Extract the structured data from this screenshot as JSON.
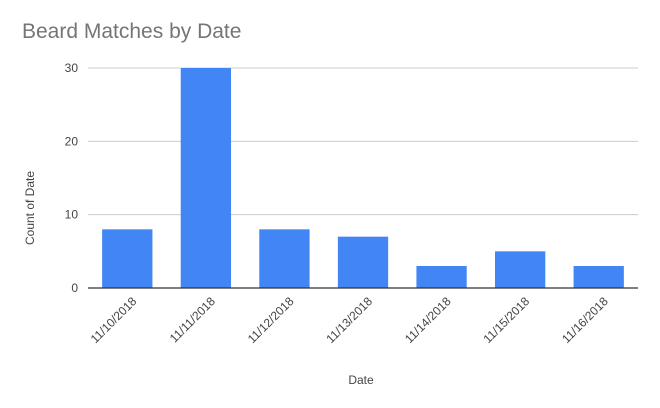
{
  "chart_data": {
    "type": "bar",
    "title": "Beard Matches by Date",
    "xlabel": "Date",
    "ylabel": "Count of Date",
    "categories": [
      "11/10/2018",
      "11/11/2018",
      "11/12/2018",
      "11/13/2018",
      "11/14/2018",
      "11/15/2018",
      "11/16/2018"
    ],
    "values": [
      8,
      30,
      8,
      7,
      3,
      5,
      3
    ],
    "ylim": [
      0,
      30
    ],
    "yticks": [
      0,
      10,
      20,
      30
    ],
    "grid": true,
    "legend": "none",
    "colors": {
      "bar": "#4285f4",
      "grid": "#cccccc",
      "axis": "#333333",
      "title": "#757575",
      "tick_text": "#444444"
    }
  }
}
